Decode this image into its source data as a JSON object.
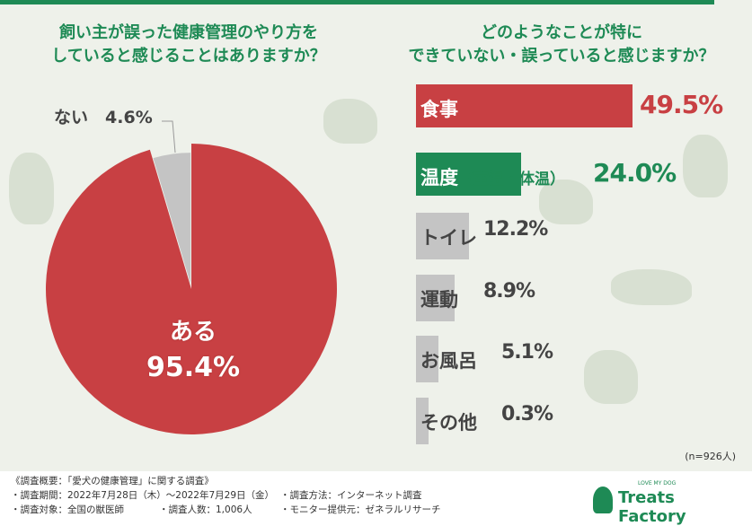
{
  "colors": {
    "red": "#c84043",
    "green": "#1e8a55",
    "gray": "#c4c4c4",
    "bg": "#eef1ea"
  },
  "q1": {
    "line1": "飼い主が誤った健康管理のやり方を",
    "line2": "していると感じることはありますか？"
  },
  "q2": {
    "line1": "どのようなことが特に",
    "line2": "できていない・誤っていると感じますか？"
  },
  "chart_data": [
    {
      "type": "pie",
      "labels": [
        "ある",
        "ない"
      ],
      "values": [
        95.4,
        4.6
      ],
      "display": [
        "95.4%",
        "4.6%"
      ],
      "colors": [
        "#c84043",
        "#c4c4c4"
      ]
    },
    {
      "type": "bar",
      "orientation": "horizontal",
      "categories": [
        "食事",
        "温度（室温・体温）",
        "トイレ",
        "運動",
        "お風呂",
        "その他"
      ],
      "values": [
        49.5,
        24.0,
        12.2,
        8.9,
        5.1,
        0.3
      ],
      "display": [
        "49.5%",
        "24.0%",
        "12.2%",
        "8.9%",
        "5.1%",
        "0.3%"
      ],
      "colors": [
        "#c84043",
        "#1e8a55",
        "#c4c4c4",
        "#c4c4c4",
        "#c4c4c4",
        "#c4c4c4"
      ],
      "note": "(n=926人)"
    }
  ],
  "footer": {
    "title": "《調査概要：「愛犬の健康管理」に関する調査》",
    "period": "・調査期間：2022年7月28日（木）～2022年7月29日（金）",
    "method": "・調査方法：インターネット調査",
    "target": "・調査対象：全国の獣医師",
    "count": "・調査人数：1,006人",
    "provider": "・モニター提供元：ゼネラルリサーチ"
  },
  "logo": {
    "name": "Treats Factory",
    "tagline": "LOVE MY DOG",
    "sub": "トリーツファクトリー"
  }
}
